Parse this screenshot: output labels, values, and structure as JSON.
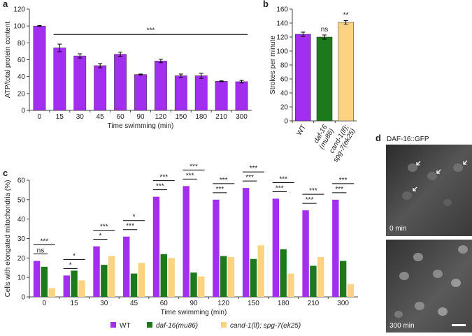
{
  "panel_labels": [
    "a",
    "b",
    "c",
    "d"
  ],
  "chart_data": [
    {
      "type": "bar",
      "ylabel": "ATP/total protein content",
      "xlabel": "Time swimming (min)",
      "categories": [
        "0",
        "15",
        "30",
        "45",
        "60",
        "90",
        "120",
        "150",
        "180",
        "210",
        "300"
      ],
      "values": [
        100,
        74,
        64.5,
        53,
        66.5,
        42.5,
        58.5,
        41,
        41,
        34.5,
        34
      ],
      "errors": [
        0.5,
        4.5,
        2.5,
        2.5,
        2.5,
        0.5,
        2,
        2,
        3,
        0.5,
        1.5
      ],
      "color": "#a22ff0",
      "ylim": [
        0,
        120
      ],
      "yticks": [
        0,
        20,
        40,
        60,
        80,
        100,
        120
      ],
      "annotation": "***"
    },
    {
      "type": "bar",
      "ylabel": "Strokes per minute",
      "categories": [
        [
          "WT"
        ],
        [
          "daf-16",
          "(mu86)"
        ],
        [
          "cand-1(lf);",
          "spg-7(ek25)"
        ]
      ],
      "values": [
        124,
        120,
        141
      ],
      "errors": [
        3,
        3,
        2.5
      ],
      "colors": [
        "#a22ff0",
        "#1c7a1c",
        "#fdd383"
      ],
      "value_annotations": [
        null,
        "ns",
        "**"
      ],
      "ylim": [
        0,
        160
      ],
      "yticks": [
        0,
        20,
        40,
        60,
        80,
        100,
        120,
        140,
        160
      ]
    },
    {
      "type": "grouped-bar",
      "ylabel": "Cells with elongated mitochondria (%)",
      "xlabel": "Time swimming (min)",
      "categories": [
        "0",
        "15",
        "30",
        "45",
        "60",
        "90",
        "120",
        "150",
        "180",
        "210",
        "300"
      ],
      "series": [
        {
          "name": "WT",
          "color": "#a22ff0",
          "values": [
            18.5,
            11,
            26,
            31,
            51.5,
            57,
            50,
            56,
            50.5,
            44.5,
            50
          ]
        },
        {
          "name": "daf-16(mu86)",
          "color": "#1c7a1c",
          "values": [
            15.5,
            13.5,
            16.5,
            12,
            22,
            12.5,
            21,
            19.5,
            24.5,
            16,
            18.5
          ]
        },
        {
          "name": "cand-1(lf); spg-7(ek25)",
          "color": "#fdd383",
          "values": [
            4.5,
            8.5,
            21,
            17.5,
            20,
            10.5,
            20.5,
            26.5,
            12,
            20.5,
            6.5
          ]
        }
      ],
      "annotations": [
        [
          "ns",
          "***"
        ],
        [
          "*",
          "*"
        ],
        [
          "*",
          "***"
        ],
        [
          "***",
          "*"
        ],
        [
          "***",
          "***"
        ],
        [
          "***",
          "***"
        ],
        [
          "***",
          "***"
        ],
        [
          "***",
          "***"
        ],
        [
          "***",
          "***"
        ],
        [
          "***",
          "***"
        ],
        [
          "***",
          "***"
        ]
      ],
      "ylim": [
        0,
        60
      ],
      "yticks": [
        0,
        10,
        20,
        30,
        40,
        50,
        60
      ],
      "legend": "bottom"
    }
  ],
  "micrographs": {
    "title": "DAF-16::GFP",
    "frames": [
      "0 min",
      "300 min"
    ]
  }
}
